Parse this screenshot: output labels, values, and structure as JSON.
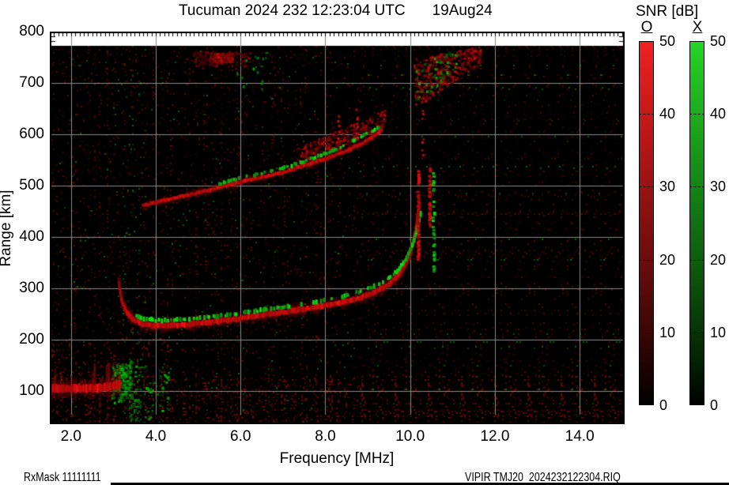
{
  "footer": {
    "left": "RxMask 11111111",
    "right": "VIPIR  TMJ20_2024232122304.RIQ"
  },
  "legend": {
    "title": "SNR [dB]",
    "o_label": "O",
    "x_label": "X",
    "ticks": [
      50,
      40,
      30,
      20,
      10,
      0
    ],
    "o_color_top": "#f02020",
    "x_color_top": "#25d425"
  },
  "chart_data": {
    "type": "heatmap",
    "title": "Tucuman 2024 232 12:23:04 UTC",
    "date_label": "19Aug24",
    "xlabel": "Frequency [MHz]",
    "ylabel": "Range [km]",
    "xlim": [
      1.5,
      15.06
    ],
    "ylim": [
      35,
      800
    ],
    "xticks": [
      2,
      4,
      6,
      8,
      10,
      12,
      14
    ],
    "xtick_labels": [
      "2.0",
      "4.0",
      "6.0",
      "8.0",
      "10.0",
      "12.0",
      "14.0"
    ],
    "yticks": [
      800,
      700,
      600,
      500,
      400,
      300,
      200,
      100
    ],
    "ytick_labels": [
      "800",
      "700",
      "600",
      "500",
      "400",
      "300",
      "200",
      "100"
    ],
    "minor_xtick_step_mhz": 0.1,
    "snr_scale_db": [
      0,
      50
    ],
    "grid": true,
    "grid_color": "#8a8a8a",
    "background": "#000000",
    "white_band_top_km": 772,
    "o_mode_color": "red",
    "x_mode_color": "green",
    "traces": [
      {
        "name": "E-region O echo",
        "color": "red",
        "width": 9,
        "style": "solid",
        "halo": true,
        "spikes": true,
        "points": [
          [
            1.52,
            104
          ],
          [
            1.9,
            104
          ],
          [
            2.3,
            105
          ],
          [
            2.7,
            106
          ],
          [
            3.0,
            109
          ],
          [
            3.18,
            114
          ]
        ]
      },
      {
        "name": "F-region O trace",
        "color": "red",
        "width": 6,
        "style": "solid",
        "halo": true,
        "fade_in": true,
        "points": [
          [
            3.12,
            315
          ],
          [
            3.2,
            275
          ],
          [
            3.32,
            252
          ],
          [
            3.48,
            238
          ],
          [
            3.68,
            230
          ],
          [
            3.95,
            227
          ],
          [
            4.3,
            227
          ],
          [
            4.8,
            230
          ],
          [
            5.3,
            234
          ],
          [
            5.8,
            239
          ],
          [
            6.3,
            245
          ],
          [
            6.8,
            251
          ],
          [
            7.3,
            257
          ],
          [
            7.8,
            263
          ],
          [
            8.3,
            271
          ],
          [
            8.8,
            281
          ],
          [
            9.2,
            293
          ],
          [
            9.5,
            308
          ],
          [
            9.75,
            327
          ],
          [
            9.95,
            355
          ],
          [
            10.08,
            390
          ],
          [
            10.16,
            425
          ],
          [
            10.22,
            468
          ]
        ]
      },
      {
        "name": "F-region X trace",
        "color": "green",
        "width": 5,
        "style": "speckle",
        "points": [
          [
            3.55,
            247
          ],
          [
            3.75,
            240
          ],
          [
            4.0,
            237
          ],
          [
            4.4,
            238
          ],
          [
            4.9,
            241
          ],
          [
            5.4,
            245
          ],
          [
            5.9,
            250
          ],
          [
            6.4,
            256
          ],
          [
            6.9,
            262
          ],
          [
            7.4,
            268
          ],
          [
            7.9,
            275
          ],
          [
            8.4,
            284
          ],
          [
            8.8,
            293
          ],
          [
            9.15,
            303
          ],
          [
            9.45,
            317
          ],
          [
            9.7,
            334
          ],
          [
            9.9,
            356
          ],
          [
            10.05,
            383
          ],
          [
            10.17,
            415
          ],
          [
            10.26,
            448
          ]
        ]
      },
      {
        "name": "second-hop O trace",
        "color": "red",
        "width": 4,
        "style": "solid",
        "halo": true,
        "points": [
          [
            3.7,
            461
          ],
          [
            4.2,
            471
          ],
          [
            4.8,
            482
          ],
          [
            5.4,
            494
          ],
          [
            6.0,
            507
          ],
          [
            6.5,
            516
          ],
          [
            7.0,
            526
          ],
          [
            7.5,
            539
          ],
          [
            8.0,
            552
          ],
          [
            8.5,
            568
          ],
          [
            8.9,
            584
          ],
          [
            9.2,
            599
          ],
          [
            9.35,
            610
          ]
        ]
      },
      {
        "name": "second-hop X speckle",
        "color": "green",
        "width": 4,
        "style": "speckle",
        "points": [
          [
            5.5,
            503
          ],
          [
            6.0,
            515
          ],
          [
            6.5,
            524
          ],
          [
            7.0,
            534
          ],
          [
            7.45,
            546
          ],
          [
            7.9,
            559
          ],
          [
            8.3,
            572
          ],
          [
            8.7,
            589
          ],
          [
            9.0,
            602
          ],
          [
            9.3,
            614
          ]
        ]
      }
    ],
    "clouds": [
      {
        "name": "spread above second hop",
        "color": "red",
        "density": 0.28,
        "f": [
          7.3,
          9.4
        ],
        "km_bottom": [
          542,
          614
        ],
        "km_top": [
          575,
          650
        ]
      },
      {
        "name": "upper right patch red",
        "color": "red",
        "density": 0.5,
        "f": [
          10.08,
          11.65
        ],
        "km_bottom": [
          652,
          740
        ],
        "km_top": [
          750,
          772
        ]
      },
      {
        "name": "upper right patch green",
        "color": "green",
        "density": 0.1,
        "f": [
          10.12,
          11.1
        ],
        "km_bottom": [
          655,
          735
        ],
        "km_top": [
          735,
          770
        ]
      },
      {
        "name": "top left smudge",
        "color": "red",
        "density": 0.22,
        "dim": true,
        "f": [
          4.85,
          6.2
        ],
        "km_bottom": [
          733,
          733
        ],
        "km_top": [
          763,
          763
        ]
      },
      {
        "name": "top left smudge bright",
        "color": "red",
        "density": 0.5,
        "f": [
          5.25,
          5.8
        ],
        "km_bottom": [
          742,
          742
        ],
        "km_top": [
          760,
          760
        ]
      },
      {
        "name": "green dots near smudge",
        "color": "green",
        "density": 0.05,
        "f": [
          5.9,
          6.6
        ],
        "km_bottom": [
          690,
          690
        ],
        "km_top": [
          765,
          765
        ]
      },
      {
        "name": "E-region green cluster",
        "color": "green",
        "density": 0.75,
        "f": [
          2.95,
          3.42
        ],
        "km_bottom": [
          76,
          86
        ],
        "km_top": [
          150,
          162
        ]
      },
      {
        "name": "sporadic green right of E",
        "color": "green",
        "density": 0.12,
        "f": [
          3.4,
          4.3
        ],
        "km_bottom": [
          40,
          40
        ],
        "km_top": [
          150,
          150
        ]
      }
    ],
    "streaks": [
      {
        "name": "foF2 asymptote spike 1",
        "color": "red",
        "f": 10.2,
        "km": [
          355,
          530
        ],
        "w": 4,
        "density": 0.75
      },
      {
        "name": "foF2 asymptote spike 2",
        "color": "red",
        "f": 10.47,
        "km": [
          415,
          536
        ],
        "w": 4,
        "density": 0.7
      },
      {
        "name": "fxF2 asymptote green spike",
        "color": "green",
        "f": 10.56,
        "km": [
          330,
          526
        ],
        "w": 4,
        "density": 0.35
      },
      {
        "name": "spread streak a",
        "color": "red",
        "f": 8.32,
        "km": [
          570,
          640
        ],
        "w": 3,
        "density": 0.3
      },
      {
        "name": "spread streak b",
        "color": "red",
        "f": 8.75,
        "km": [
          588,
          650
        ],
        "w": 3,
        "density": 0.28
      },
      {
        "name": "spread streak c",
        "color": "red",
        "f": 10.3,
        "km": [
          560,
          700
        ],
        "w": 3,
        "density": 0.2
      }
    ],
    "noise": {
      "seed": 987654321,
      "red_density": 0.085,
      "green_density": 0.008,
      "green_columns_mhz": [
        [
          3.18,
          3.66
        ]
      ],
      "green_patch": {
        "f": [
          3.35,
          4.35
        ],
        "km_max": 165,
        "boost": 5
      },
      "dense_km": 130,
      "mid_dense": {
        "km": 205,
        "f_max": 4.3,
        "boost": 2.2
      }
    }
  }
}
